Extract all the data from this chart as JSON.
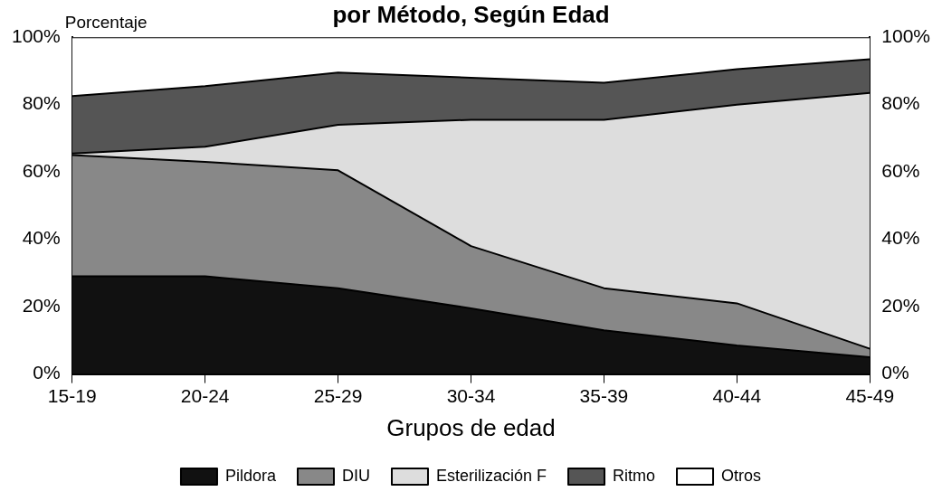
{
  "chart_data": {
    "type": "area",
    "stacked": true,
    "title": "por Método, Según Edad",
    "ylabel": "Porcentaje",
    "xlabel": "Grupos de edad",
    "categories": [
      "15-19",
      "20-24",
      "25-29",
      "30-34",
      "35-39",
      "40-44",
      "45-49"
    ],
    "series": [
      {
        "name": "Pildora",
        "color": "#111111",
        "values": [
          29,
          29,
          25.5,
          19.5,
          13,
          8.5,
          5
        ]
      },
      {
        "name": "DIU",
        "color": "#888888",
        "values": [
          36,
          34,
          35,
          18.5,
          12.5,
          12.5,
          2.5
        ]
      },
      {
        "name": "Esterilización F",
        "color": "#dddddd",
        "values": [
          0.5,
          4.5,
          13.5,
          37.5,
          50,
          59,
          76
        ]
      },
      {
        "name": "Ritmo",
        "color": "#555555",
        "values": [
          17,
          18,
          15.5,
          12.5,
          11,
          10.5,
          10
        ]
      },
      {
        "name": "Otros",
        "color": "#ffffff",
        "values": [
          17.5,
          14.5,
          10.5,
          12,
          13.5,
          9.5,
          6.5
        ]
      }
    ],
    "ylim": [
      0,
      100
    ],
    "yticks": [
      {
        "value": 0,
        "label": "0%"
      },
      {
        "value": 20,
        "label": "20%"
      },
      {
        "value": 40,
        "label": "40%"
      },
      {
        "value": 60,
        "label": "60%"
      },
      {
        "value": 80,
        "label": "80%"
      },
      {
        "value": 100,
        "label": "100%"
      }
    ],
    "y2lim": [
      0,
      100
    ],
    "y2ticks": [
      {
        "value": 0,
        "label": "0%"
      },
      {
        "value": 20,
        "label": "20%"
      },
      {
        "value": 40,
        "label": "40%"
      },
      {
        "value": 60,
        "label": "60%"
      },
      {
        "value": 80,
        "label": "80%"
      },
      {
        "value": 100,
        "label": "100%"
      }
    ],
    "grid": false,
    "legend": "bottom"
  }
}
